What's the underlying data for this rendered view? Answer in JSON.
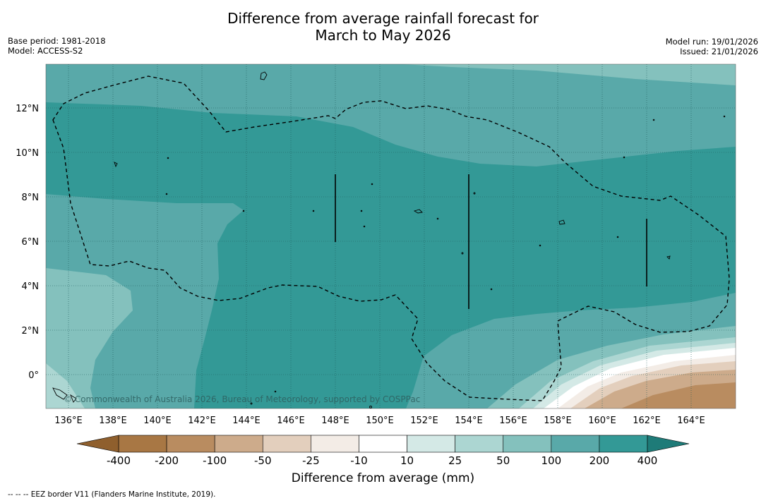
{
  "header": {
    "title_line1": "Difference from average rainfall forecast for",
    "title_line2": "March to May 2026",
    "base_period": "Base period: 1981-2018",
    "model": "Model: ACCESS-S2",
    "model_run": "Model run: 19/01/2026",
    "issued": "Issued: 21/01/2026"
  },
  "map": {
    "lat_labels": [
      "12°N",
      "10°N",
      "8°N",
      "6°N",
      "4°N",
      "2°N",
      "0°"
    ],
    "lon_labels": [
      "136°E",
      "138°E",
      "140°E",
      "142°E",
      "144°E",
      "146°E",
      "148°E",
      "150°E",
      "152°E",
      "154°E",
      "156°E",
      "158°E",
      "160°E",
      "162°E",
      "164°E"
    ],
    "copyright": "© Commonwealth of Australia 2026, Bureau of Meteorology, supported by COSPPac"
  },
  "colorbar": {
    "labels": [
      "-400",
      "-200",
      "-100",
      "-50",
      "-25",
      "-10",
      "10",
      "25",
      "50",
      "100",
      "200",
      "400"
    ],
    "colors": [
      "#a87744",
      "#b98c60",
      "#cdab8b",
      "#e3cfbd",
      "#f3ece6",
      "#ffffff",
      "#d4e9e6",
      "#acd6d2",
      "#84c1bd",
      "#59a9a9",
      "#339996"
    ],
    "under_color": "#8f5f2d",
    "over_color": "#1e7b78",
    "title": "Difference from average (mm)"
  },
  "footnote": "--  --  -- EEZ border V11 (Flanders Marine Institute, 2019)."
}
